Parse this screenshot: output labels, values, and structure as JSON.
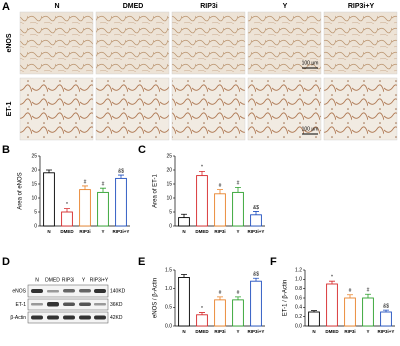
{
  "panel_letters": [
    "A",
    "B",
    "C",
    "D",
    "E",
    "F"
  ],
  "panel_a": {
    "columns": [
      "N",
      "DMED",
      "RIP3i",
      "Y",
      "RIP3i+Y"
    ],
    "rows": [
      "eNOS",
      "ET-1"
    ],
    "scale_bar": "100 μm"
  },
  "panel_d": {
    "lanes": [
      "N",
      "DMED",
      "RIP3i",
      "Y",
      "RIP3i+Y"
    ],
    "proteins": [
      "eNOS",
      "ET-1",
      "β-Actin"
    ],
    "sizes": [
      "140KD",
      "36KD",
      "42KD"
    ]
  },
  "chart_data": [
    {
      "type": "bar",
      "ylabel": "Area of eNOS",
      "categories": [
        "N",
        "DMED",
        "RIP3i",
        "Y",
        "RIP3i+Y"
      ],
      "values": [
        19,
        5,
        13,
        12,
        17
      ],
      "errors": [
        1,
        1.2,
        1.3,
        1.5,
        1.2
      ],
      "colors": [
        "#000000",
        "#d62728",
        "#e8822a",
        "#2ca02c",
        "#1f4fbf"
      ],
      "annotations": [
        null,
        "*",
        "#",
        "#",
        "&$"
      ],
      "ylim": [
        0,
        25
      ],
      "yticks": [
        0,
        5,
        10,
        15,
        20,
        25
      ]
    },
    {
      "type": "bar",
      "ylabel": "Area of ET-1",
      "categories": [
        "N",
        "DMED",
        "RIP3i",
        "Y",
        "RIP3i+Y"
      ],
      "values": [
        3,
        18,
        11.5,
        12,
        4
      ],
      "errors": [
        1.2,
        1.5,
        1.5,
        1.8,
        1.2
      ],
      "colors": [
        "#000000",
        "#d62728",
        "#e8822a",
        "#2ca02c",
        "#1f4fbf"
      ],
      "annotations": [
        null,
        "*",
        "#",
        "#",
        "&$"
      ],
      "ylim": [
        0,
        25
      ],
      "yticks": [
        0,
        5,
        10,
        15,
        20,
        25
      ]
    },
    {
      "type": "bar",
      "ylabel": "eNOS / β-Actin",
      "categories": [
        "N",
        "DMED",
        "RIP3i",
        "Y",
        "RIP3i+Y"
      ],
      "values": [
        1.3,
        0.3,
        0.7,
        0.7,
        1.2
      ],
      "errors": [
        0.08,
        0.06,
        0.08,
        0.08,
        0.08
      ],
      "colors": [
        "#000000",
        "#d62728",
        "#e8822a",
        "#2ca02c",
        "#1f4fbf"
      ],
      "annotations": [
        null,
        "*",
        "#",
        "#",
        "&$"
      ],
      "ylim": [
        0,
        1.5
      ],
      "yticks": [
        {
          "value": 0,
          "label": "0.0"
        },
        0.5,
        {
          "value": 1,
          "label": "1.0"
        },
        1.5
      ]
    },
    {
      "type": "bar",
      "ylabel": "ET-1 / β-Actin",
      "categories": [
        "N",
        "DMED",
        "RIP3i",
        "Y",
        "RIP3i+Y"
      ],
      "values": [
        0.3,
        0.9,
        0.6,
        0.6,
        0.3
      ],
      "errors": [
        0.03,
        0.06,
        0.07,
        0.08,
        0.04
      ],
      "colors": [
        "#000000",
        "#d62728",
        "#e8822a",
        "#2ca02c",
        "#1f4fbf"
      ],
      "annotations": [
        null,
        "*",
        "#",
        "#",
        "&$"
      ],
      "ylim": [
        0,
        1.2
      ],
      "yticks": [
        {
          "value": 0,
          "label": "0.0"
        },
        0.2,
        0.4,
        0.6,
        0.8,
        {
          "value": 1,
          "label": "1.0"
        },
        1.2
      ]
    }
  ]
}
